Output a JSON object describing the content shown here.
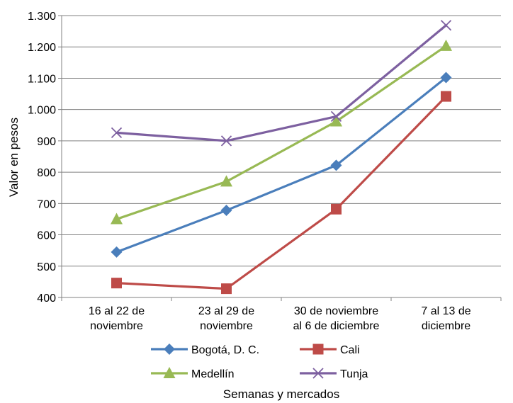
{
  "chart_data": {
    "type": "line",
    "title": "",
    "xlabel": "Semanas y mercados",
    "ylabel": "Valor en pesos",
    "ylim": [
      400,
      1300
    ],
    "y_ticks": [
      "400",
      "500",
      "600",
      "700",
      "800",
      "900",
      "1.000",
      "1.100",
      "1.200",
      "1.300"
    ],
    "categories": [
      [
        "16 al 22 de",
        "noviembre"
      ],
      [
        "23 al 29 de",
        "noviembre"
      ],
      [
        "30 de noviembre",
        "al 6 de diciembre"
      ],
      [
        "7 al 13 de",
        "diciembre"
      ]
    ],
    "grid": true,
    "legend_position": "bottom",
    "series": [
      {
        "name": "Bogotá, D. C.",
        "values": [
          545,
          678,
          822,
          1102
        ],
        "color": "#4a7ebb",
        "marker": "diamond"
      },
      {
        "name": "Cali",
        "values": [
          446,
          428,
          682,
          1042
        ],
        "color": "#be4b48",
        "marker": "square"
      },
      {
        "name": "Medellín",
        "values": [
          650,
          770,
          962,
          1203
        ],
        "color": "#98b954",
        "marker": "triangle"
      },
      {
        "name": "Tunja",
        "values": [
          926,
          900,
          978,
          1269
        ],
        "color": "#7d60a0",
        "marker": "x"
      }
    ]
  }
}
